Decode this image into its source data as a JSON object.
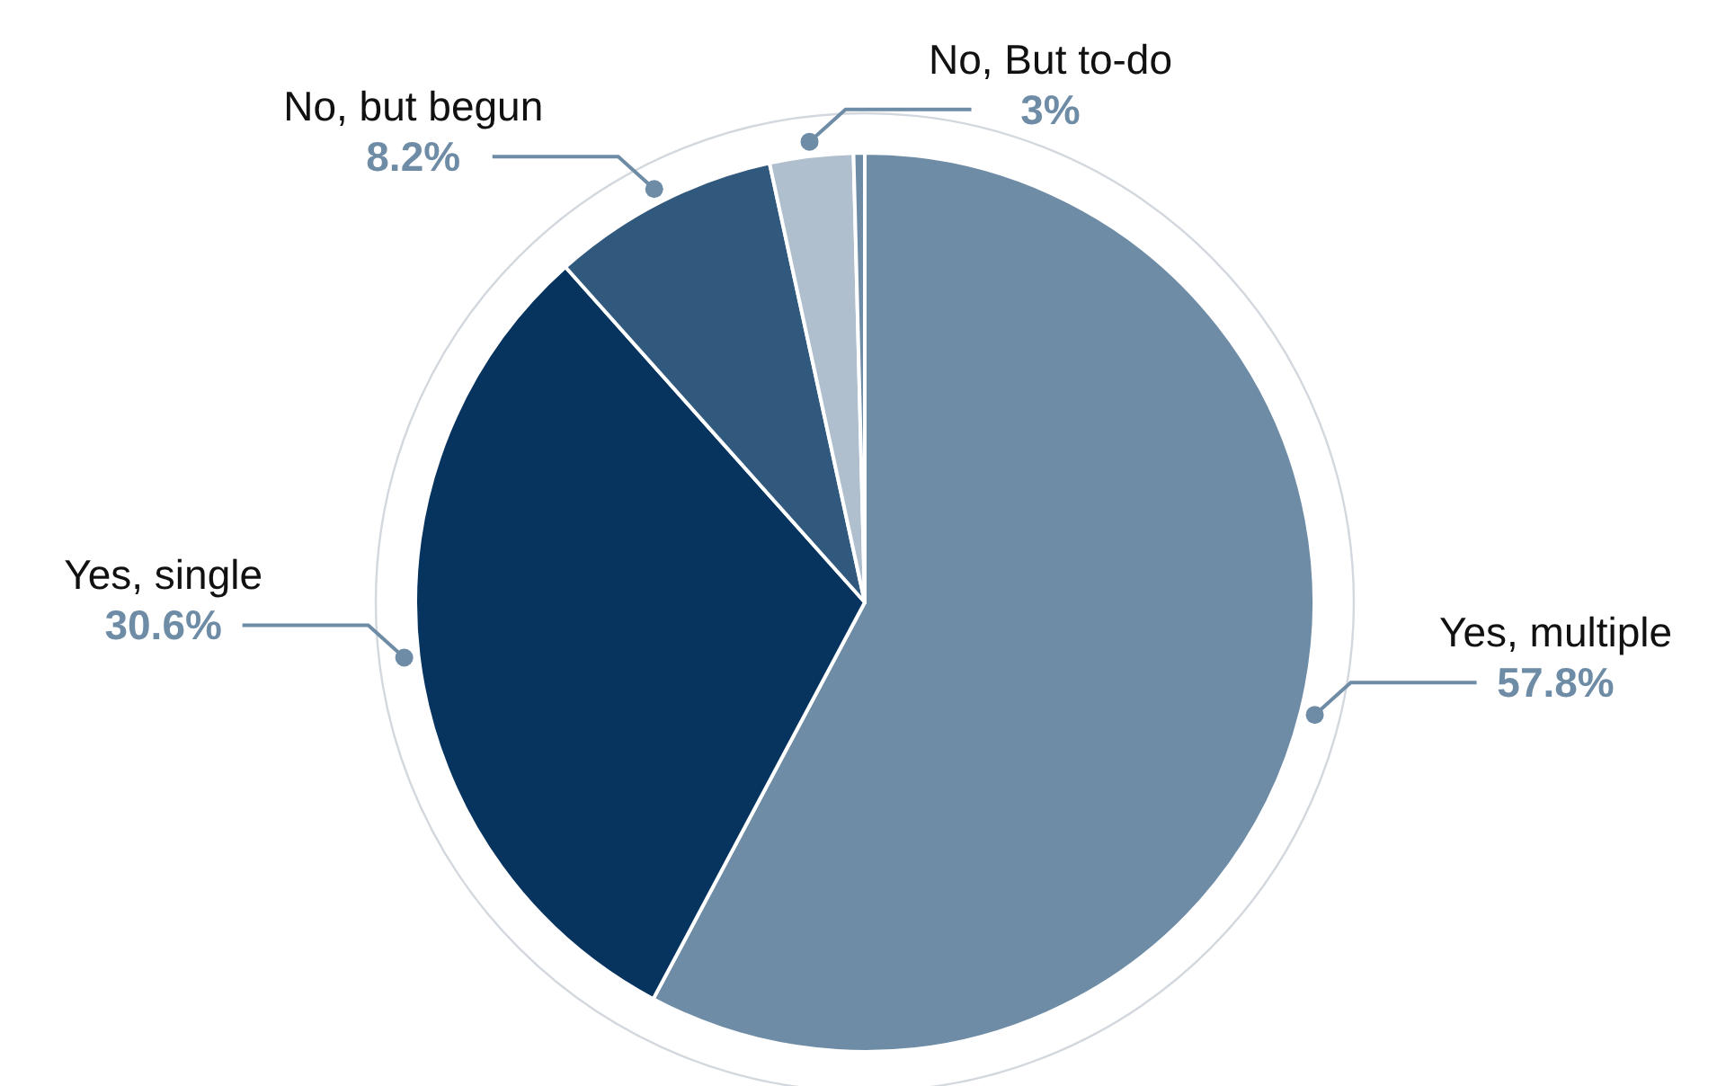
{
  "chart_data": {
    "type": "pie",
    "categories": [
      "Yes, multiple",
      "Yes, single",
      "No, but begun",
      "No, But to-do",
      null
    ],
    "values": [
      57.8,
      30.6,
      8.2,
      3,
      0.4
    ],
    "colors": [
      "#6f8ca6",
      "#06345f",
      "#31587d",
      "#b0bfce",
      "#6f8ca6"
    ],
    "value_labels": [
      "57.8%",
      "30.6%",
      "8.2%",
      "3%",
      null
    ]
  }
}
